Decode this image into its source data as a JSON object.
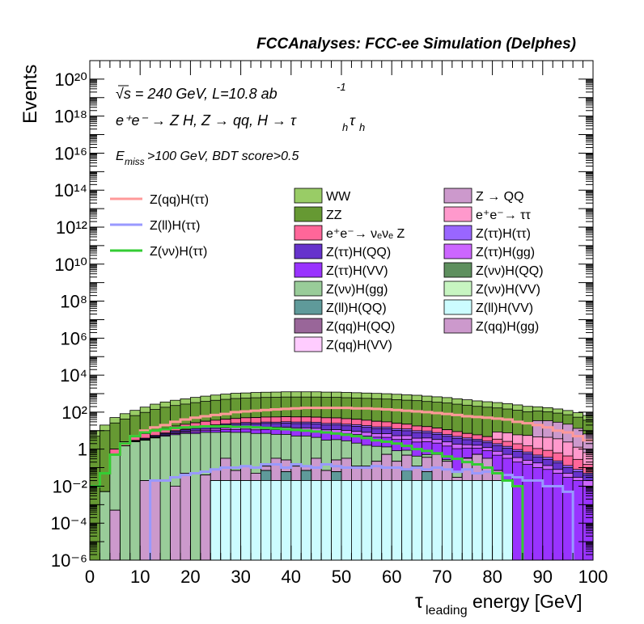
{
  "header": {
    "title": "FCCAnalyses: FCC-ee Simulation (Delphes)"
  },
  "annotations": {
    "line1": "√s = 240 GeV, L=10.8 ab",
    "line1_sup": "-1",
    "line2": "e⁺e⁻ → Z H, Z → qq, H → τ",
    "line2_sub1": "h",
    "line2_tau": "τ",
    "line2_sub2": "h",
    "line3_pre": "E",
    "line3_sub": "miss",
    "line3_post": ">100 GeV, BDT score>0.5"
  },
  "chart_data": {
    "type": "histogram",
    "title": "FCCAnalyses: FCC-ee Simulation (Delphes)",
    "xlabel": "τ_leading energy [GeV]",
    "ylabel": "Events",
    "xlim": [
      0,
      100
    ],
    "ylim": [
      1e-06,
      1e+21
    ],
    "log_y": true,
    "grid": false,
    "x_ticks": [
      "0",
      "10",
      "20",
      "30",
      "40",
      "50",
      "60",
      "70",
      "80",
      "90",
      "100"
    ],
    "y_ticks": [
      "10⁻⁶",
      "10⁻⁴",
      "10⁻²",
      "1",
      "10²",
      "10⁴",
      "10⁶",
      "10⁸",
      "10¹⁰",
      "10¹²",
      "10¹⁴",
      "10¹⁶",
      "10¹⁸",
      "10²⁰"
    ],
    "bin_edges": [
      0,
      2,
      4,
      6,
      8,
      10,
      12,
      14,
      16,
      18,
      20,
      22,
      24,
      26,
      28,
      30,
      32,
      34,
      36,
      38,
      40,
      42,
      44,
      46,
      48,
      50,
      52,
      54,
      56,
      58,
      60,
      62,
      64,
      66,
      68,
      70,
      72,
      74,
      76,
      78,
      80,
      82,
      84,
      86,
      88,
      90,
      92,
      94,
      96,
      98,
      100
    ],
    "stack_order": "bottom to top",
    "stacked_series": [
      {
        "name": "Z(ll)H(VV)",
        "color": "#ccfcff",
        "values": [
          0,
          0,
          0,
          0,
          0,
          0,
          0,
          0,
          0,
          0,
          0,
          0,
          0.02,
          0.02,
          0.02,
          0.02,
          0.02,
          0.02,
          0.02,
          0.02,
          0.02,
          0.02,
          0.02,
          0.02,
          0.02,
          0.02,
          0.02,
          0.02,
          0.02,
          0.02,
          0.02,
          0.02,
          0.02,
          0.02,
          0.02,
          0.02,
          0.02,
          0.02,
          0.02,
          0.02,
          0.02,
          0.02,
          0,
          0,
          0,
          0,
          0,
          0,
          0,
          0
        ]
      },
      {
        "name": "Z(ll)H(QQ)",
        "color": "#5f9a9a",
        "values": [
          0,
          0,
          0,
          0,
          0,
          0,
          0,
          0,
          0,
          0,
          0,
          0,
          0,
          0,
          0,
          0,
          0,
          0.05,
          0,
          0.04,
          0,
          0.05,
          0,
          0,
          0.04,
          0,
          0,
          0,
          0,
          0,
          0,
          0.05,
          0,
          0.04,
          0,
          0,
          0,
          0,
          0,
          0,
          0,
          0,
          0,
          0,
          0,
          0,
          0,
          0,
          0,
          0
        ]
      },
      {
        "name": "Z(νν)H(VV)",
        "color": "#c7f5c1",
        "values": [
          0,
          0,
          0,
          0,
          0,
          0,
          0,
          0,
          0,
          0,
          0,
          0,
          0,
          0,
          0,
          0,
          0,
          0,
          0,
          0,
          0,
          0,
          0,
          0,
          0,
          0,
          0,
          0,
          0,
          0,
          0,
          0,
          0,
          0,
          0,
          0,
          0,
          0,
          0,
          0,
          0,
          0,
          0,
          0,
          0,
          0,
          0,
          0,
          0,
          0
        ]
      },
      {
        "name": "Z(qq)H(VV)",
        "color": "#ffccff",
        "values": [
          0,
          0,
          0,
          0,
          0,
          0,
          0,
          0,
          0,
          0,
          0,
          0,
          0,
          0,
          0,
          0,
          0,
          0,
          0,
          0,
          0,
          0,
          0,
          0,
          0,
          0,
          0,
          0,
          0,
          0,
          0,
          0,
          0,
          0,
          0,
          0,
          0,
          0,
          0,
          0,
          0,
          0,
          0,
          0,
          0,
          0,
          0,
          0,
          0,
          0
        ]
      },
      {
        "name": "Z(qq)H(gg)",
        "color": "#cc99cc",
        "values": [
          0,
          0,
          0.0005,
          0,
          0,
          0.02,
          0.02,
          0,
          0.01,
          0.05,
          0,
          0.04,
          0.06,
          0.3,
          0.05,
          0.1,
          0.03,
          0.05,
          0.3,
          0.2,
          0.1,
          0.05,
          0.3,
          0.05,
          0.2,
          0.3,
          0.1,
          0.1,
          0.2,
          0.5,
          0.2,
          0.4,
          0.1,
          0.3,
          0.5,
          0.2,
          0.01,
          0.3,
          0.5,
          0.3,
          0.05,
          0,
          0,
          0,
          0,
          0,
          0,
          0,
          0,
          0
        ]
      },
      {
        "name": "Z(qq)H(QQ)",
        "color": "#996699",
        "values": [
          0,
          0,
          0,
          0,
          0,
          0,
          0,
          0,
          0,
          0,
          0,
          0,
          0,
          0,
          0,
          0,
          0,
          0,
          0,
          0,
          0,
          0,
          0,
          0,
          0,
          0,
          0,
          0,
          0,
          0,
          0,
          0,
          0,
          0,
          0,
          0,
          0,
          0,
          0,
          0,
          0,
          0,
          0,
          0,
          0,
          0,
          0,
          0,
          0,
          0
        ]
      },
      {
        "name": "Z(νν)H(QQ)",
        "color": "#5e8f5e",
        "values": [
          0,
          0,
          0,
          0,
          0,
          0,
          0,
          0,
          0,
          0,
          0,
          0,
          0,
          0,
          0,
          0,
          0,
          0,
          0,
          0,
          0,
          0,
          0,
          0,
          0,
          0,
          0,
          0,
          0,
          0,
          0,
          0,
          0,
          0,
          0,
          0,
          0,
          0,
          0,
          0,
          0,
          0,
          0,
          0,
          0,
          0,
          0,
          0,
          0,
          0
        ]
      },
      {
        "name": "Z(νν)H(gg)",
        "color": "#99cc99",
        "values": [
          0,
          0.005,
          0.5,
          1.5,
          2.5,
          3,
          4,
          5,
          6,
          7,
          7,
          8,
          8,
          8,
          8,
          8,
          7,
          7,
          6,
          6,
          5,
          5,
          4,
          3,
          3,
          2.5,
          2,
          1.5,
          1.2,
          0.8,
          0.6,
          0.4,
          0.3,
          0.15,
          0.1,
          0.05,
          0.03,
          0.02,
          0.01,
          0,
          0,
          0,
          0,
          0,
          0,
          0,
          0,
          0,
          0,
          0
        ]
      },
      {
        "name": "Z(ττ)H(VV)",
        "color": "#9933ff",
        "values": [
          0,
          0,
          0,
          0,
          0.1,
          0.15,
          0.3,
          0.5,
          0.8,
          1,
          1.5,
          2,
          2.5,
          3,
          3.5,
          4,
          4,
          4.5,
          5,
          5,
          5,
          5,
          5,
          4.5,
          4.5,
          4,
          4,
          3.5,
          3,
          3,
          2.5,
          2.5,
          2,
          2,
          1.5,
          1.2,
          1,
          0.8,
          0.6,
          0.5,
          0.4,
          0.3,
          0.2,
          0.15,
          0.1,
          0.08,
          0.05,
          0.03,
          0.02,
          0.01
        ]
      },
      {
        "name": "Z(ττ)H(gg)",
        "color": "#cc66ff",
        "values": [
          0,
          0,
          0,
          0,
          0.1,
          0.2,
          0.3,
          0.5,
          0.8,
          1,
          1.5,
          2,
          2.5,
          3,
          3,
          3.5,
          3.5,
          4,
          4,
          4,
          4,
          4,
          4,
          3.5,
          3.5,
          3.5,
          3,
          3,
          2.5,
          2.5,
          2,
          2,
          1.5,
          1.5,
          1.2,
          1,
          0.8,
          0.6,
          0.5,
          0.4,
          0.3,
          0.2,
          0.15,
          0.1,
          0.08,
          0.05,
          0.03,
          0.02,
          0.01,
          0.01
        ]
      },
      {
        "name": "Z(ττ)H(QQ)",
        "color": "#6633cc",
        "values": [
          0,
          0,
          0,
          0,
          0.2,
          0.4,
          0.6,
          1,
          1.5,
          2,
          3,
          4,
          5,
          6,
          7,
          8,
          8,
          9,
          9,
          10,
          10,
          10,
          10,
          9,
          9,
          8,
          8,
          7,
          6,
          6,
          5,
          4.5,
          4,
          3.5,
          3,
          2.5,
          2,
          1.5,
          1.2,
          1,
          0.8,
          0.6,
          0.4,
          0.3,
          0.2,
          0.15,
          0.1,
          0.05,
          0.03,
          0.02
        ]
      },
      {
        "name": "Z(ττ)H(ττ)",
        "color": "#9966ff",
        "values": [
          0,
          0,
          0,
          0,
          0.1,
          0.15,
          0.3,
          0.5,
          0.8,
          1,
          1.5,
          2,
          2.5,
          3,
          3.5,
          4,
          4,
          4.5,
          4.5,
          5,
          5,
          5,
          5,
          4.5,
          4.5,
          4,
          4,
          3.5,
          3,
          3,
          2.5,
          2.5,
          2,
          2,
          1.5,
          1.2,
          1,
          0.8,
          0.6,
          0.5,
          0.4,
          0.3,
          0.2,
          0.15,
          0.1,
          0.08,
          0.05,
          0.03,
          0.02,
          0.01
        ]
      },
      {
        "name": "e⁺e⁻→ ν_eν_e Z",
        "color": "#ff6699",
        "values": [
          0,
          0,
          0.5,
          1,
          2,
          3,
          4,
          6,
          8,
          10,
          12,
          14,
          16,
          18,
          20,
          22,
          24,
          25,
          26,
          26,
          26,
          26,
          25,
          25,
          24,
          22,
          20,
          18,
          16,
          14,
          12,
          10,
          8,
          7,
          6,
          5,
          4,
          3,
          2.5,
          2,
          1.5,
          1.2,
          1,
          0.8,
          0.6,
          0.5,
          0.4,
          0.3,
          0.2,
          0.1
        ]
      },
      {
        "name": "e⁺e⁻→ ττ",
        "color": "#ff99cc",
        "values": [
          0,
          0,
          0,
          0,
          0,
          0,
          0,
          0,
          0,
          0,
          0,
          0,
          0,
          0,
          0,
          0,
          0,
          0,
          0,
          0,
          0,
          0,
          0,
          0,
          0,
          0,
          0,
          0,
          0,
          0,
          0,
          0,
          0,
          0,
          0,
          0,
          0,
          0,
          0,
          0,
          5,
          5,
          4,
          4,
          3.5,
          3.5,
          3,
          2,
          1,
          0.5
        ]
      },
      {
        "name": "Z → QQ",
        "color": "#cc99cc",
        "values": [
          0,
          0,
          0,
          0,
          0,
          0,
          0,
          0,
          0,
          0,
          0,
          0,
          0,
          0,
          0,
          0,
          0,
          0,
          0,
          0,
          0,
          0,
          0,
          0,
          0,
          0,
          0,
          0,
          0,
          0,
          0,
          0,
          0,
          0,
          0,
          0,
          0,
          0,
          0,
          0,
          0,
          0,
          0,
          0,
          30,
          30,
          25,
          20,
          12,
          6
        ]
      },
      {
        "name": "ZZ",
        "color": "#669933",
        "values": [
          5,
          10,
          25,
          40,
          60,
          90,
          130,
          170,
          210,
          250,
          300,
          350,
          400,
          450,
          500,
          520,
          550,
          570,
          580,
          600,
          600,
          600,
          600,
          580,
          580,
          560,
          540,
          520,
          500,
          480,
          450,
          420,
          400,
          360,
          330,
          300,
          260,
          230,
          200,
          180,
          160,
          140,
          120,
          100,
          80,
          70,
          60,
          50,
          40,
          30
        ]
      },
      {
        "name": "WW",
        "color": "#99cc66",
        "values": [
          5,
          10,
          25,
          40,
          60,
          90,
          130,
          170,
          210,
          250,
          300,
          350,
          400,
          450,
          500,
          520,
          550,
          570,
          580,
          600,
          600,
          600,
          600,
          580,
          580,
          560,
          540,
          520,
          500,
          480,
          450,
          420,
          400,
          360,
          330,
          300,
          260,
          230,
          200,
          180,
          160,
          140,
          120,
          100,
          80,
          70,
          60,
          50,
          40,
          30
        ]
      }
    ],
    "overlay_series": [
      {
        "name": "Z(qq)H(ττ)",
        "color": "#ff9999",
        "values": [
          0.01,
          0.05,
          0.5,
          2,
          5,
          10,
          15,
          20,
          30,
          40,
          50,
          60,
          70,
          80,
          100,
          110,
          120,
          130,
          140,
          150,
          160,
          170,
          170,
          170,
          170,
          170,
          160,
          160,
          150,
          140,
          130,
          120,
          110,
          100,
          90,
          80,
          70,
          60,
          55,
          50,
          45,
          40,
          30,
          25,
          20,
          15,
          10,
          8,
          5,
          3
        ]
      },
      {
        "name": "Z(ll)H(ττ)",
        "color": "#9999ff",
        "values": [
          0,
          0,
          0,
          0,
          0,
          0,
          0.02,
          0.02,
          0.03,
          0.04,
          0.05,
          0.06,
          0.08,
          0.1,
          0.1,
          0.12,
          0.1,
          0.15,
          0.15,
          0.1,
          0.15,
          0.12,
          0.1,
          0.15,
          0.12,
          0.1,
          0.1,
          0.1,
          0.12,
          0.1,
          0.1,
          0.08,
          0.1,
          0.08,
          0.1,
          0.08,
          0.06,
          0.08,
          0.05,
          0.06,
          0.05,
          0.04,
          0.03,
          0.02,
          0.02,
          0.01,
          0.01,
          0.005,
          0,
          0
        ]
      },
      {
        "name": "Z(νν)H(ττ)",
        "color": "#33cc33",
        "values": [
          0.01,
          0.05,
          0.5,
          2,
          5,
          8,
          10,
          12,
          14,
          15,
          16,
          17,
          17,
          17,
          16,
          16,
          15,
          14,
          13,
          12,
          11,
          10,
          9,
          8,
          7,
          6,
          5,
          4,
          3,
          2.5,
          2,
          1.5,
          1,
          0.8,
          0.6,
          0.4,
          0.3,
          0.2,
          0.15,
          0.1,
          0.05,
          0.02,
          0.01,
          0,
          0,
          0,
          0,
          0,
          0,
          0
        ]
      }
    ],
    "legend": {
      "placement": "top",
      "lines": [
        "Z(qq)H(ττ)",
        "Z(ll)H(ττ)",
        "Z(νν)H(ττ)"
      ],
      "col1": [
        "WW",
        "ZZ",
        "e⁺e⁻→ ν_eν_e Z",
        "Z(ττ)H(QQ)",
        "Z(ττ)H(VV)",
        "Z(νν)H(gg)",
        "Z(ll)H(QQ)",
        "Z(qq)H(QQ)",
        "Z(qq)H(VV)"
      ],
      "col2": [
        "Z → QQ",
        "e⁺e⁻→ ττ",
        "Z(ττ)H(ττ)",
        "Z(ττ)H(gg)",
        "Z(νν)H(QQ)",
        "Z(νν)H(VV)",
        "Z(ll)H(VV)",
        "Z(qq)H(gg)"
      ]
    }
  }
}
